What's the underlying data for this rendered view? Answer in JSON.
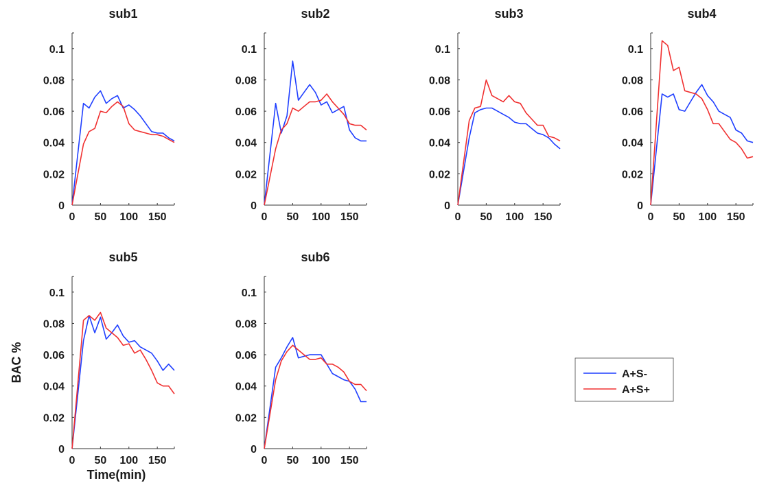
{
  "chart_data": [
    {
      "type": "line",
      "title": "sub1",
      "xlim": [
        0,
        180
      ],
      "ylim": [
        0,
        0.11
      ],
      "grid": false,
      "xticks": [
        "0",
        "50",
        "100",
        "150"
      ],
      "yticks": [
        "0",
        "0.02",
        "0.04",
        "0.06",
        "0.08",
        "0.1"
      ],
      "x": [
        0,
        20,
        30,
        40,
        50,
        60,
        70,
        80,
        90,
        100,
        110,
        120,
        130,
        140,
        150,
        160,
        170,
        180
      ],
      "series": [
        {
          "name": "A+S-",
          "color": "#1f3fff",
          "values": [
            0,
            0.065,
            0.062,
            0.069,
            0.073,
            0.065,
            0.068,
            0.07,
            0.062,
            0.064,
            0.061,
            0.057,
            0.052,
            0.047,
            0.046,
            0.046,
            0.043,
            0.041
          ]
        },
        {
          "name": "A+S+",
          "color": "#f03030",
          "values": [
            0,
            0.039,
            0.047,
            0.049,
            0.06,
            0.059,
            0.063,
            0.066,
            0.063,
            0.052,
            0.048,
            0.047,
            0.046,
            0.045,
            0.045,
            0.044,
            0.042,
            0.04
          ]
        }
      ]
    },
    {
      "type": "line",
      "title": "sub2",
      "xlim": [
        0,
        180
      ],
      "ylim": [
        0,
        0.11
      ],
      "grid": false,
      "xticks": [
        "0",
        "50",
        "100",
        "150"
      ],
      "yticks": [
        "0",
        "0.02",
        "0.04",
        "0.06",
        "0.08",
        "0.1"
      ],
      "x": [
        0,
        20,
        30,
        40,
        50,
        60,
        70,
        80,
        90,
        100,
        110,
        120,
        130,
        140,
        150,
        160,
        170,
        180
      ],
      "series": [
        {
          "name": "A+S-",
          "color": "#1f3fff",
          "values": [
            0,
            0.065,
            0.046,
            0.057,
            0.092,
            0.067,
            0.072,
            0.077,
            0.072,
            0.064,
            0.066,
            0.059,
            0.061,
            0.063,
            0.048,
            0.043,
            0.041,
            0.041
          ]
        },
        {
          "name": "A+S+",
          "color": "#f03030",
          "values": [
            0,
            0.036,
            0.048,
            0.052,
            0.062,
            0.06,
            0.063,
            0.066,
            0.066,
            0.067,
            0.071,
            0.066,
            0.062,
            0.058,
            0.052,
            0.051,
            0.051,
            0.048
          ]
        }
      ]
    },
    {
      "type": "line",
      "title": "sub3",
      "xlim": [
        0,
        180
      ],
      "ylim": [
        0,
        0.11
      ],
      "grid": false,
      "xticks": [
        "0",
        "50",
        "100",
        "150"
      ],
      "yticks": [
        "0",
        "0.02",
        "0.04",
        "0.06",
        "0.08",
        "0.1"
      ],
      "x": [
        0,
        20,
        30,
        40,
        50,
        60,
        70,
        80,
        90,
        100,
        110,
        120,
        130,
        140,
        150,
        160,
        170,
        180
      ],
      "series": [
        {
          "name": "A+S-",
          "color": "#1f3fff",
          "values": [
            0,
            0.043,
            0.059,
            0.061,
            0.062,
            0.062,
            0.06,
            0.058,
            0.056,
            0.053,
            0.052,
            0.052,
            0.049,
            0.046,
            0.045,
            0.043,
            0.039,
            0.036
          ]
        },
        {
          "name": "A+S+",
          "color": "#f03030",
          "values": [
            0,
            0.054,
            0.062,
            0.063,
            0.08,
            0.07,
            0.068,
            0.066,
            0.07,
            0.066,
            0.065,
            0.059,
            0.055,
            0.051,
            0.051,
            0.044,
            0.043,
            0.041
          ]
        }
      ]
    },
    {
      "type": "line",
      "title": "sub4",
      "xlim": [
        0,
        180
      ],
      "ylim": [
        0,
        0.11
      ],
      "grid": false,
      "xticks": [
        "0",
        "50",
        "100",
        "150"
      ],
      "yticks": [
        "0",
        "0.02",
        "0.04",
        "0.06",
        "0.08",
        "0.1"
      ],
      "x": [
        0,
        20,
        30,
        40,
        50,
        60,
        70,
        80,
        90,
        100,
        110,
        120,
        130,
        140,
        150,
        160,
        170,
        180
      ],
      "series": [
        {
          "name": "A+S-",
          "color": "#1f3fff",
          "values": [
            0,
            0.071,
            0.069,
            0.071,
            0.061,
            0.06,
            0.066,
            0.072,
            0.077,
            0.07,
            0.066,
            0.06,
            0.058,
            0.056,
            0.048,
            0.046,
            0.041,
            0.04
          ]
        },
        {
          "name": "A+S+",
          "color": "#f03030",
          "values": [
            0,
            0.105,
            0.102,
            0.086,
            0.088,
            0.073,
            0.072,
            0.071,
            0.068,
            0.061,
            0.052,
            0.052,
            0.047,
            0.042,
            0.04,
            0.036,
            0.03,
            0.031
          ]
        }
      ]
    },
    {
      "type": "line",
      "title": "sub5",
      "xlim": [
        0,
        180
      ],
      "ylim": [
        0,
        0.11
      ],
      "grid": false,
      "xticks": [
        "0",
        "50",
        "100",
        "150"
      ],
      "yticks": [
        "0",
        "0.02",
        "0.04",
        "0.06",
        "0.08",
        "0.1"
      ],
      "xlabel": "Time(min)",
      "ylabel": "BAC %",
      "x": [
        0,
        20,
        30,
        40,
        50,
        60,
        70,
        80,
        90,
        100,
        110,
        120,
        130,
        140,
        150,
        160,
        170,
        180
      ],
      "series": [
        {
          "name": "A+S-",
          "color": "#1f3fff",
          "values": [
            0,
            0.069,
            0.085,
            0.074,
            0.084,
            0.07,
            0.074,
            0.079,
            0.072,
            0.068,
            0.069,
            0.065,
            0.063,
            0.061,
            0.056,
            0.05,
            0.054,
            0.05
          ]
        },
        {
          "name": "A+S+",
          "color": "#f03030",
          "values": [
            0,
            0.082,
            0.085,
            0.082,
            0.087,
            0.077,
            0.074,
            0.071,
            0.066,
            0.067,
            0.061,
            0.063,
            0.057,
            0.05,
            0.042,
            0.04,
            0.04,
            0.035
          ]
        }
      ]
    },
    {
      "type": "line",
      "title": "sub6",
      "xlim": [
        0,
        180
      ],
      "ylim": [
        0,
        0.11
      ],
      "grid": false,
      "xticks": [
        "0",
        "50",
        "100",
        "150"
      ],
      "yticks": [
        "0",
        "0.02",
        "0.04",
        "0.06",
        "0.08",
        "0.1"
      ],
      "x": [
        0,
        20,
        30,
        40,
        50,
        60,
        70,
        80,
        90,
        100,
        110,
        120,
        130,
        140,
        150,
        160,
        170,
        180
      ],
      "series": [
        {
          "name": "A+S-",
          "color": "#1f3fff",
          "values": [
            0,
            0.052,
            0.058,
            0.065,
            0.071,
            0.058,
            0.059,
            0.06,
            0.06,
            0.06,
            0.054,
            0.048,
            0.046,
            0.044,
            0.043,
            0.038,
            0.03,
            0.03
          ]
        },
        {
          "name": "A+S+",
          "color": "#f03030",
          "values": [
            0,
            0.044,
            0.056,
            0.062,
            0.066,
            0.063,
            0.06,
            0.057,
            0.057,
            0.058,
            0.054,
            0.054,
            0.052,
            0.049,
            0.043,
            0.041,
            0.041,
            0.037
          ]
        }
      ]
    }
  ],
  "legend": {
    "placement": "right",
    "entries": [
      {
        "label": "A+S-",
        "color": "#1f3fff"
      },
      {
        "label": "A+S+",
        "color": "#f03030"
      }
    ]
  }
}
